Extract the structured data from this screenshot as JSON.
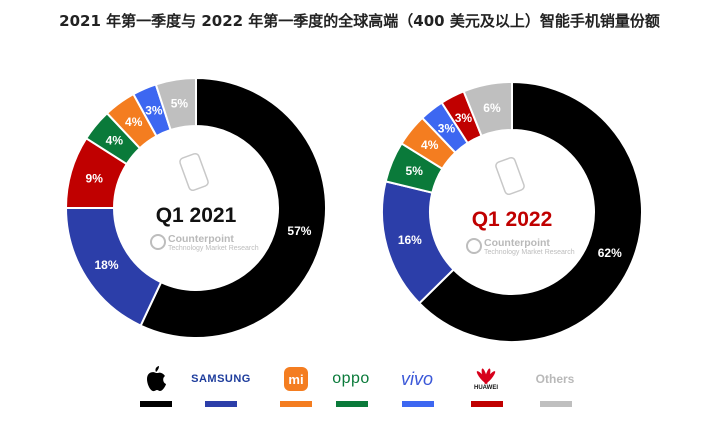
{
  "title": "2021 年第一季度与 2022 年第一季度的全球高端（400 美元及以上）智能手机销量份额",
  "brand": {
    "name": "Counterpoint",
    "tagline": "Technology Market Research"
  },
  "colors": {
    "apple": "#000000",
    "samsung": "#2c3ea9",
    "xiaomi": "#f47d20",
    "oppo": "#0a7a3a",
    "vivo": "#3d67f1",
    "huawei": "#c00000",
    "others": "#bfbfbf",
    "title_2021": "#111111",
    "title_2022": "#c00000"
  },
  "legend": [
    {
      "key": "apple",
      "label": "",
      "icon": "apple-logo-icon"
    },
    {
      "key": "samsung",
      "label": "SAMSUNG",
      "icon": "samsung-wordmark"
    },
    {
      "key": "xiaomi",
      "label": "mi",
      "icon": "xiaomi-logo-icon"
    },
    {
      "key": "oppo",
      "label": "oppo",
      "icon": "oppo-wordmark"
    },
    {
      "key": "vivo",
      "label": "vivo",
      "icon": "vivo-wordmark"
    },
    {
      "key": "huawei",
      "label": "HUAWEI",
      "icon": "huawei-logo-icon"
    },
    {
      "key": "others",
      "label": "Others",
      "icon": "others-text"
    }
  ],
  "chart_data": [
    {
      "type": "pie",
      "title": "Q1 2021",
      "segments": [
        {
          "key": "apple",
          "value": 57
        },
        {
          "key": "samsung",
          "value": 18
        },
        {
          "key": "huawei",
          "value": 9
        },
        {
          "key": "oppo",
          "value": 4
        },
        {
          "key": "xiaomi",
          "value": 4
        },
        {
          "key": "vivo",
          "value": 3
        },
        {
          "key": "others",
          "value": 5
        }
      ]
    },
    {
      "type": "pie",
      "title": "Q1 2022",
      "segments": [
        {
          "key": "apple",
          "value": 62
        },
        {
          "key": "samsung",
          "value": 16
        },
        {
          "key": "oppo",
          "value": 5
        },
        {
          "key": "xiaomi",
          "value": 4
        },
        {
          "key": "vivo",
          "value": 3
        },
        {
          "key": "huawei",
          "value": 3
        },
        {
          "key": "others",
          "value": 6
        }
      ]
    }
  ]
}
